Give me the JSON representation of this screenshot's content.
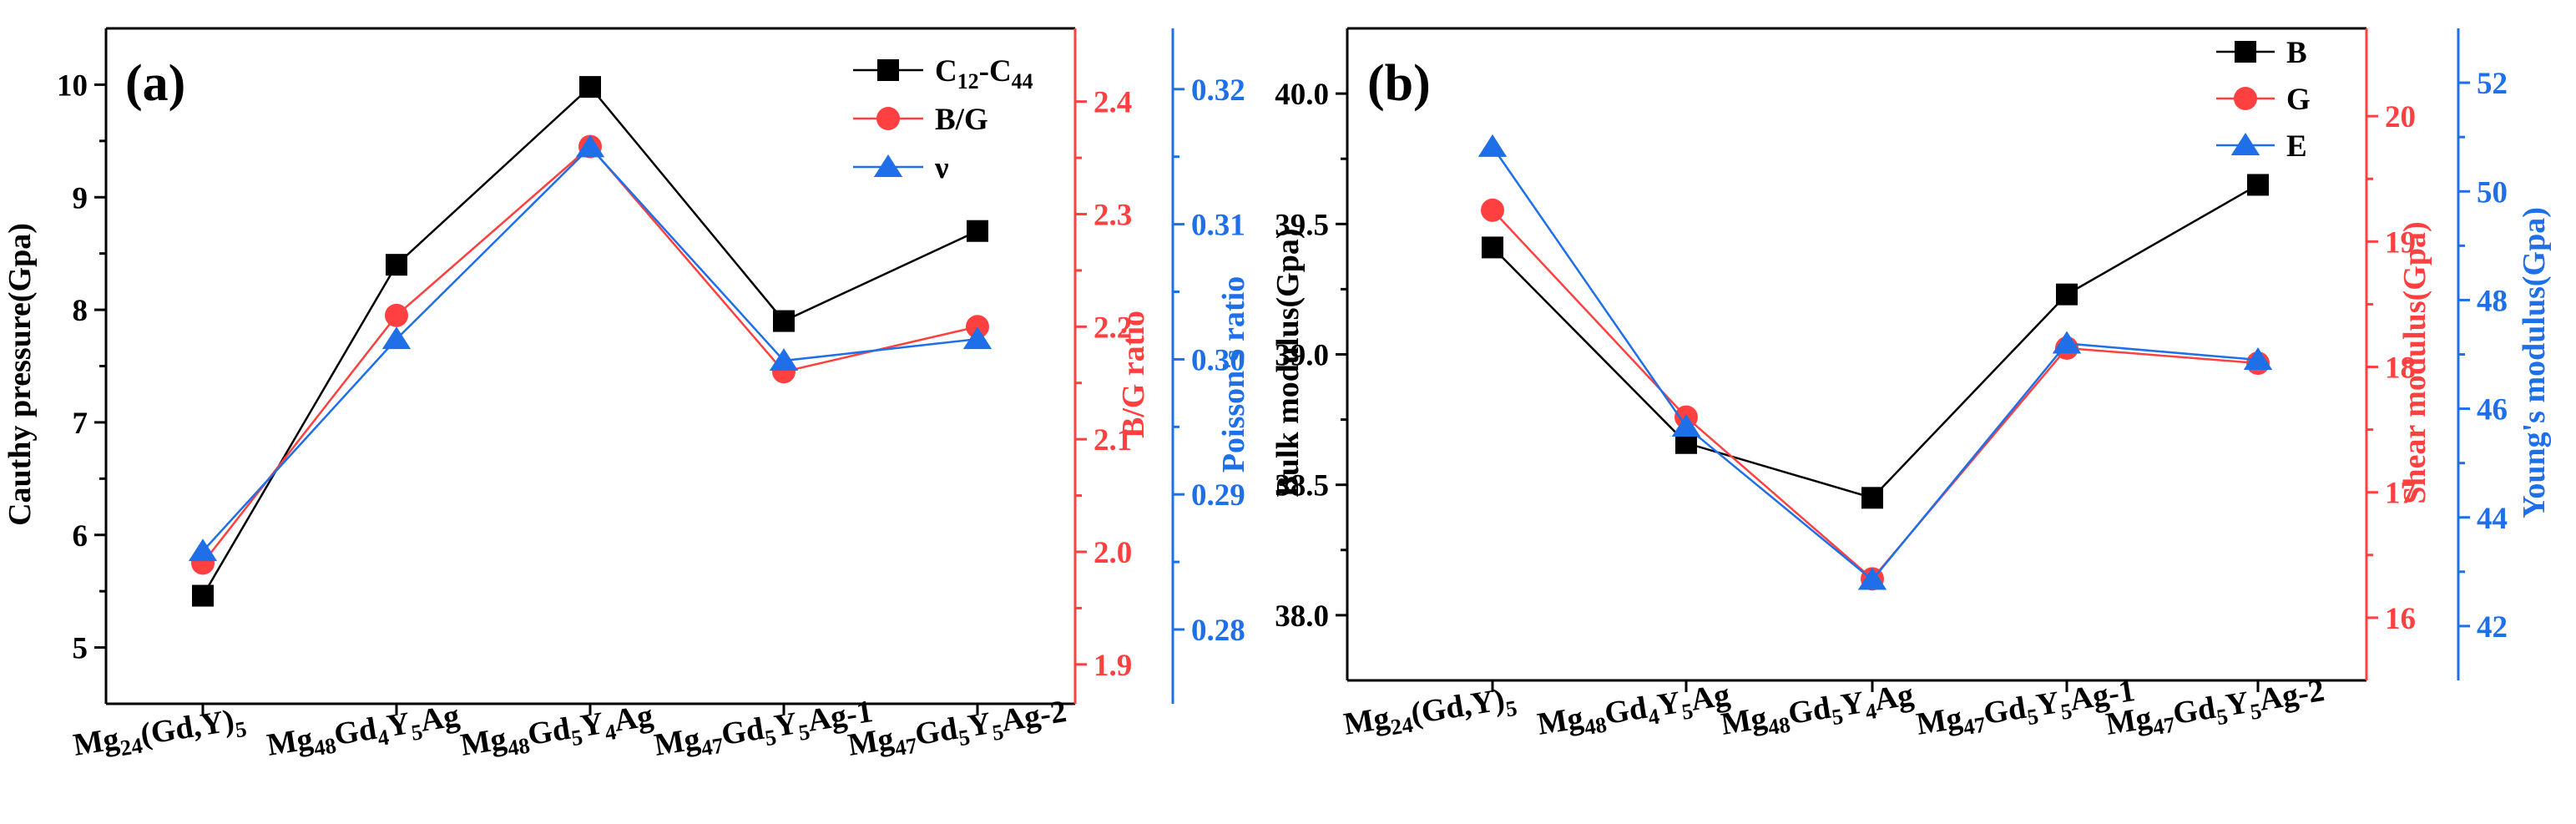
{
  "chart_data": [
    {
      "panel_label": "(a)",
      "type": "line",
      "categories": [
        {
          "base": "Mg",
          "parts": [
            [
              "24",
              "sub"
            ],
            [
              "(Gd,Y)",
              ""
            ],
            [
              "5",
              "sub"
            ]
          ]
        },
        {
          "base": "Mg",
          "parts": [
            [
              "48",
              "sub"
            ],
            [
              "Gd",
              ""
            ],
            [
              "4",
              "sub"
            ],
            [
              "Y",
              ""
            ],
            [
              "5",
              "sub"
            ],
            [
              "Ag",
              ""
            ]
          ]
        },
        {
          "base": "Mg",
          "parts": [
            [
              "48",
              "sub"
            ],
            [
              "Gd",
              ""
            ],
            [
              "5",
              "sub"
            ],
            [
              "Y",
              ""
            ],
            [
              "4",
              "sub"
            ],
            [
              "Ag",
              ""
            ]
          ]
        },
        {
          "base": "Mg",
          "parts": [
            [
              "47",
              "sub"
            ],
            [
              "Gd",
              ""
            ],
            [
              "5",
              "sub"
            ],
            [
              "Y",
              ""
            ],
            [
              "5",
              "sub"
            ],
            [
              "Ag-1",
              ""
            ]
          ]
        },
        {
          "base": "Mg",
          "parts": [
            [
              "47",
              "sub"
            ],
            [
              "Gd",
              ""
            ],
            [
              "5",
              "sub"
            ],
            [
              "Y",
              ""
            ],
            [
              "5",
              "sub"
            ],
            [
              "Ag-2",
              ""
            ]
          ]
        }
      ],
      "axes": [
        {
          "id": "left",
          "label": "Cauthy pressure(Gpa)",
          "color": "#000000",
          "range": [
            4.5,
            10.5
          ],
          "ticks": [
            5,
            6,
            7,
            8,
            9,
            10
          ],
          "decimals": 0
        },
        {
          "id": "right1",
          "label": "B/G ratio",
          "color": "#ff4040",
          "range": [
            1.865,
            2.465
          ],
          "ticks": [
            1.9,
            2.0,
            2.1,
            2.2,
            2.3,
            2.4
          ],
          "decimals": 1
        },
        {
          "id": "right2",
          "label": "Poisson's ratio",
          "color": "#1e6fe8",
          "range": [
            0.2745,
            0.3245
          ],
          "ticks": [
            0.28,
            0.29,
            0.3,
            0.31,
            0.32
          ],
          "decimals": 2
        }
      ],
      "series": [
        {
          "name": "C12-C44",
          "legend_parts": [
            [
              "C",
              ""
            ],
            [
              "12",
              "sub"
            ],
            [
              "-C",
              ""
            ],
            [
              "44",
              "sub"
            ]
          ],
          "axis": "left",
          "marker": "square",
          "color": "#000000",
          "values": [
            5.46,
            8.4,
            9.98,
            7.9,
            8.7
          ]
        },
        {
          "name": "B/G",
          "legend_parts": [
            [
              "B/G",
              ""
            ]
          ],
          "axis": "right1",
          "marker": "circle",
          "color": "#ff4040",
          "values": [
            1.99,
            2.21,
            2.36,
            2.16,
            2.2
          ]
        },
        {
          "name": "ν",
          "legend_parts": [
            [
              "ν",
              ""
            ]
          ],
          "axis": "right2",
          "marker": "triangle",
          "color": "#1e6fe8",
          "values": [
            0.2858,
            0.3015,
            0.3157,
            0.2999,
            0.3015
          ]
        }
      ]
    },
    {
      "panel_label": "(b)",
      "type": "line",
      "categories": [
        {
          "base": "Mg",
          "parts": [
            [
              "24",
              "sub"
            ],
            [
              "(Gd,Y)",
              ""
            ],
            [
              "5",
              "sub"
            ]
          ]
        },
        {
          "base": "Mg",
          "parts": [
            [
              "48",
              "sub"
            ],
            [
              "Gd",
              ""
            ],
            [
              "4",
              "sub"
            ],
            [
              "Y",
              ""
            ],
            [
              "5",
              "sub"
            ],
            [
              "Ag",
              ""
            ]
          ]
        },
        {
          "base": "Mg",
          "parts": [
            [
              "48",
              "sub"
            ],
            [
              "Gd",
              ""
            ],
            [
              "5",
              "sub"
            ],
            [
              "Y",
              ""
            ],
            [
              "4",
              "sub"
            ],
            [
              "Ag",
              ""
            ]
          ]
        },
        {
          "base": "Mg",
          "parts": [
            [
              "47",
              "sub"
            ],
            [
              "Gd",
              ""
            ],
            [
              "5",
              "sub"
            ],
            [
              "Y",
              ""
            ],
            [
              "5",
              "sub"
            ],
            [
              "Ag-1",
              ""
            ]
          ]
        },
        {
          "base": "Mg",
          "parts": [
            [
              "47",
              "sub"
            ],
            [
              "Gd",
              ""
            ],
            [
              "5",
              "sub"
            ],
            [
              "Y",
              ""
            ],
            [
              "5",
              "sub"
            ],
            [
              "Ag-2",
              ""
            ]
          ]
        }
      ],
      "axes": [
        {
          "id": "left",
          "label": "Bulk modulus(Gpa)",
          "color": "#000000",
          "range": [
            37.75,
            40.25
          ],
          "ticks": [
            38.0,
            38.5,
            39.0,
            39.5,
            40.0
          ],
          "decimals": 1
        },
        {
          "id": "right1",
          "label": "Shear modulus(Gpa)",
          "color": "#ff4040",
          "range": [
            15.5,
            20.7
          ],
          "ticks": [
            16,
            17,
            18,
            19,
            20
          ],
          "decimals": 0
        },
        {
          "id": "right2",
          "label": "Young's modulus(Gpa)",
          "color": "#1e6fe8",
          "range": [
            41.0,
            53.0
          ],
          "ticks": [
            42,
            44,
            46,
            48,
            50,
            52
          ],
          "decimals": 0
        }
      ],
      "series": [
        {
          "name": "B",
          "legend_parts": [
            [
              "B",
              ""
            ]
          ],
          "axis": "left",
          "marker": "square",
          "color": "#000000",
          "values": [
            39.41,
            38.66,
            38.45,
            39.23,
            39.65
          ]
        },
        {
          "name": "G",
          "legend_parts": [
            [
              "G",
              ""
            ]
          ],
          "axis": "right1",
          "marker": "circle",
          "color": "#ff4040",
          "values": [
            19.25,
            17.6,
            16.31,
            18.15,
            18.03
          ]
        },
        {
          "name": "E",
          "legend_parts": [
            [
              "E",
              ""
            ]
          ],
          "axis": "right2",
          "marker": "triangle",
          "color": "#1e6fe8",
          "values": [
            50.82,
            45.67,
            42.85,
            47.2,
            46.9
          ]
        }
      ]
    }
  ]
}
